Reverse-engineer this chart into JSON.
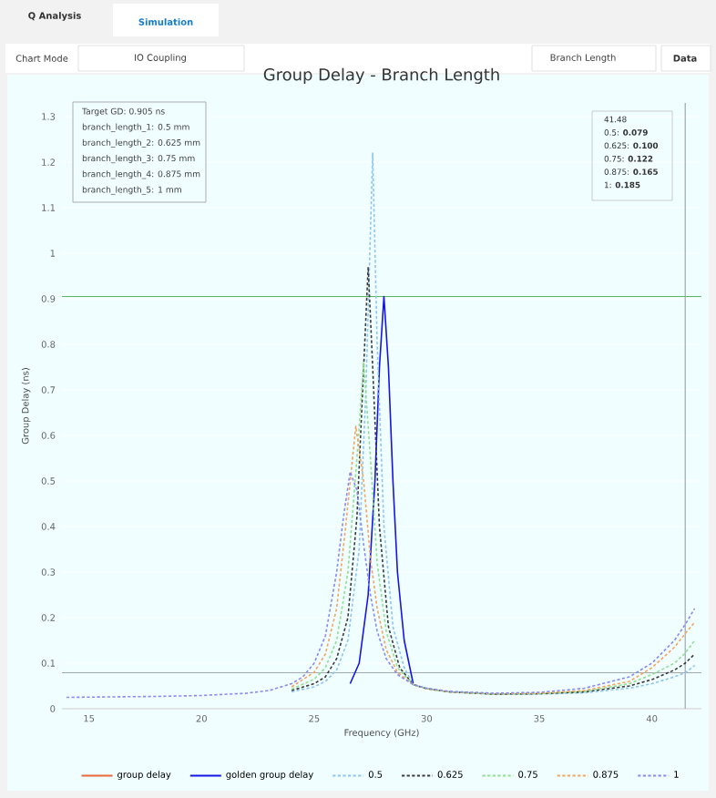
{
  "chart_data": {
    "type": "line",
    "title": "Group Delay - Branch Length",
    "xlabel": "Frequency (GHz)",
    "ylabel": "Group Delay (ns)",
    "xlim": [
      13.8,
      42.2
    ],
    "ylim": [
      0,
      1.33
    ],
    "xticks": [
      15,
      20,
      25,
      30,
      35,
      40
    ],
    "yticks": [
      0,
      0.1,
      0.2,
      0.3,
      0.4,
      0.5,
      0.6,
      0.7,
      0.8,
      0.9,
      1,
      1.1,
      1.2,
      1.3
    ],
    "grid": "y",
    "legend": "bottom",
    "marker": "none",
    "ref_lines": [
      {
        "axis": "y",
        "value": 0.905,
        "color": "#5cb85c"
      },
      {
        "axis": "x",
        "value": 41.48,
        "color": "#a0a8b0"
      },
      {
        "axis": "y",
        "value": 0.079,
        "color": "#a0a8b0"
      }
    ],
    "annotations": [
      "Q Analysis",
      "Simulation",
      "Chart Mode",
      "IO Coupling",
      "Branch Length",
      "Data",
      "Target GD: 0.905 ns",
      "branch_length_1: 0.5 mm",
      "branch_length_2: 0.625 mm",
      "branch_length_3: 0.75 mm",
      "branch_length_4: 0.875 mm",
      "branch_length_5: 1 mm",
      "41.48",
      "0.5: **0.079**",
      "0.625: **0.100**",
      "0.75: **0.122**",
      "0.875: **0.165**",
      "1: **0.185**"
    ],
    "series": [
      {
        "name": "group delay",
        "color": "#e8683a",
        "line_style": "solid"
      },
      {
        "name": "golden group delay",
        "color": "#1414e6",
        "line_style": "solid",
        "x": [
          26.6,
          27,
          27.4,
          27.7,
          27.9,
          28.1,
          28.3,
          28.5,
          28.7,
          29,
          29.4
        ],
        "values": [
          0.055,
          0.1,
          0.25,
          0.5,
          0.75,
          0.905,
          0.75,
          0.5,
          0.3,
          0.15,
          0.055
        ]
      },
      {
        "name": "0.5",
        "color": "#8ec5f0",
        "line_style": "dashed",
        "x": [
          24,
          25,
          25.5,
          26,
          26.5,
          27,
          27.3,
          27.6,
          27.8,
          28.1,
          28.5,
          29,
          29.4,
          30,
          31,
          33,
          35,
          37,
          39,
          40,
          41,
          41.48,
          41.9
        ],
        "values": [
          0.037,
          0.048,
          0.06,
          0.085,
          0.15,
          0.35,
          0.7,
          1.22,
          0.8,
          0.4,
          0.18,
          0.09,
          0.053,
          0.044,
          0.037,
          0.032,
          0.032,
          0.035,
          0.045,
          0.055,
          0.07,
          0.079,
          0.095
        ]
      },
      {
        "name": "0.625",
        "color": "#3a3a3a",
        "line_style": "dashed",
        "x": [
          24,
          25,
          25.5,
          26,
          26.5,
          26.9,
          27.2,
          27.4,
          27.6,
          27.9,
          28.3,
          28.8,
          29.4,
          30,
          31,
          33,
          35,
          37,
          39,
          40,
          41,
          41.48,
          41.9
        ],
        "values": [
          0.04,
          0.055,
          0.07,
          0.11,
          0.2,
          0.42,
          0.75,
          0.97,
          0.75,
          0.4,
          0.18,
          0.09,
          0.053,
          0.044,
          0.037,
          0.032,
          0.033,
          0.037,
          0.05,
          0.064,
          0.085,
          0.1,
          0.12
        ]
      },
      {
        "name": "0.75",
        "color": "#90e090",
        "line_style": "dashed",
        "x": [
          24,
          25,
          25.5,
          26,
          26.5,
          26.9,
          27.2,
          27.5,
          27.8,
          28.2,
          28.7,
          29.4,
          30,
          31,
          33,
          35,
          37,
          39,
          40,
          41,
          41.48,
          41.9
        ],
        "values": [
          0.043,
          0.065,
          0.09,
          0.15,
          0.3,
          0.55,
          0.76,
          0.55,
          0.32,
          0.17,
          0.09,
          0.053,
          0.044,
          0.037,
          0.032,
          0.033,
          0.038,
          0.055,
          0.075,
          0.1,
          0.122,
          0.15
        ]
      },
      {
        "name": "0.875",
        "color": "#f4a460",
        "line_style": "dashed",
        "x": [
          24,
          25,
          25.5,
          26,
          26.4,
          26.85,
          27.2,
          27.5,
          27.8,
          28.2,
          28.7,
          29.4,
          30,
          31,
          33,
          35,
          37,
          39,
          40,
          41,
          41.48,
          41.9
        ],
        "values": [
          0.048,
          0.08,
          0.12,
          0.22,
          0.4,
          0.62,
          0.5,
          0.33,
          0.22,
          0.13,
          0.08,
          0.053,
          0.044,
          0.037,
          0.033,
          0.034,
          0.04,
          0.06,
          0.09,
          0.135,
          0.165,
          0.19
        ]
      },
      {
        "name": "1",
        "color": "#8a8af0",
        "line_style": "dashed",
        "x": [
          14,
          16,
          18,
          20,
          22,
          23,
          24,
          24.5,
          25,
          25.5,
          26,
          26.3,
          26.6,
          26.9,
          27.2,
          27.5,
          27.8,
          28.2,
          28.7,
          29.4,
          30,
          31,
          33,
          35,
          37,
          39,
          40,
          41,
          41.48,
          41.9
        ],
        "values": [
          0.025,
          0.026,
          0.027,
          0.029,
          0.034,
          0.04,
          0.055,
          0.07,
          0.1,
          0.16,
          0.3,
          0.42,
          0.52,
          0.48,
          0.36,
          0.25,
          0.17,
          0.11,
          0.075,
          0.053,
          0.045,
          0.038,
          0.034,
          0.036,
          0.045,
          0.07,
          0.1,
          0.15,
          0.185,
          0.22
        ]
      }
    ]
  }
}
